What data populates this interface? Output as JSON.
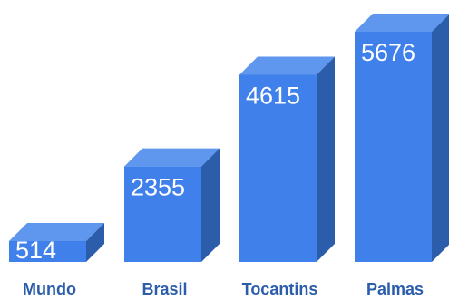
{
  "chart_data": {
    "type": "bar",
    "categories": [
      "Mundo",
      "Brasil",
      "Tocantins",
      "Palmas"
    ],
    "values": [
      514,
      2355,
      4615,
      5676
    ],
    "value_labels": [
      "514",
      "2355",
      "4615",
      "5676"
    ],
    "title": "",
    "xlabel": "",
    "ylabel": "",
    "ylim": [
      0,
      5676
    ],
    "grid": false,
    "style": "3d-bars",
    "colors": {
      "front": "#3f80ea",
      "top": "#5f96ee",
      "side": "#2b5dab",
      "category_text": "#2b5dab",
      "value_text": "#ffffff"
    }
  }
}
